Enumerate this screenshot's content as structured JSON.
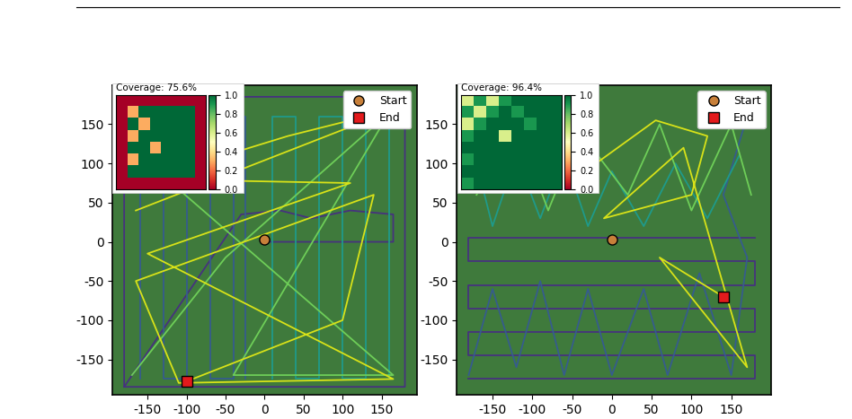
{
  "chart_data": [
    {
      "type": "path",
      "legend": "upper right",
      "coverage_label": "Coverage: 75.6%",
      "xlim": [
        -195,
        195
      ],
      "ylim": [
        -195,
        200
      ],
      "xticks": [
        -150,
        -100,
        -50,
        0,
        50,
        100,
        150
      ],
      "yticks": [
        -150,
        -100,
        -50,
        0,
        50,
        100,
        150
      ],
      "start": {
        "name": "Start",
        "x": 0,
        "y": 3,
        "color": "#c8803a",
        "marker": "circle"
      },
      "end": {
        "name": "End",
        "x": -100,
        "y": -178,
        "color": "#e31a1c",
        "marker": "square"
      },
      "paths": [
        {
          "color": "#46327e",
          "x": [
            -180,
            180,
            180,
            -180,
            -180,
            -30,
            20,
            60,
            110,
            165,
            165,
            0
          ],
          "y": [
            -185,
            -185,
            185,
            185,
            -185,
            35,
            40,
            30,
            40,
            35,
            0,
            0
          ]
        },
        {
          "color": "#365c8d",
          "x": [
            -160,
            -160,
            -130,
            -130,
            -100,
            -100,
            -70,
            -70,
            -40,
            -40,
            -25,
            -25
          ],
          "y": [
            -175,
            160,
            160,
            -175,
            -175,
            160,
            160,
            -175,
            -175,
            160,
            160,
            -175
          ]
        },
        {
          "color": "#1f9a8a",
          "x": [
            10,
            10,
            40,
            40,
            70,
            70,
            100,
            100,
            130,
            130,
            160,
            160
          ],
          "y": [
            -175,
            160,
            160,
            -175,
            -175,
            160,
            160,
            -175,
            -175,
            160,
            160,
            -175
          ]
        },
        {
          "color": "#6ece58",
          "x": [
            -170,
            -50,
            160,
            -40,
            165,
            -160
          ],
          "y": [
            -170,
            -20,
            165,
            -170,
            -170,
            110
          ]
        },
        {
          "color": "#d8e219",
          "x": [
            -165,
            170,
            30,
            -150,
            110,
            -150,
            165,
            -110,
            -165,
            140,
            100,
            -100
          ],
          "y": [
            40,
            170,
            135,
            80,
            75,
            -15,
            -175,
            -180,
            -50,
            60,
            -100,
            -178
          ]
        }
      ],
      "coverage_map": {
        "cells": [
          [
            0,
            0,
            0,
            0,
            0,
            0,
            0,
            0
          ],
          [
            0,
            0.3,
            1,
            1,
            1,
            1,
            1,
            0
          ],
          [
            0,
            1,
            0.3,
            1,
            1,
            1,
            1,
            0
          ],
          [
            0,
            0.3,
            1,
            1,
            1,
            1,
            1,
            0
          ],
          [
            0,
            1,
            1,
            0.3,
            1,
            1,
            1,
            0
          ],
          [
            0,
            0.3,
            1,
            1,
            1,
            1,
            1,
            0
          ],
          [
            0,
            1,
            1,
            1,
            1,
            1,
            1,
            0
          ],
          [
            0,
            0,
            0,
            0,
            0,
            0,
            0,
            0
          ]
        ],
        "range": [
          0.0,
          1.0
        ],
        "ticks": [
          0.0,
          0.2,
          0.4,
          0.6,
          0.8,
          1.0
        ]
      }
    },
    {
      "type": "path",
      "legend": "upper right",
      "coverage_label": "Coverage: 96.4%",
      "xlim": [
        -195,
        200
      ],
      "ylim": [
        -195,
        200
      ],
      "xticks": [
        -150,
        -100,
        -50,
        0,
        50,
        100,
        150
      ],
      "yticks": [
        -150,
        -100,
        -50,
        0,
        50,
        100,
        150
      ],
      "start": {
        "name": "Start",
        "x": 0,
        "y": 3,
        "color": "#c8803a",
        "marker": "circle"
      },
      "end": {
        "name": "End",
        "x": 140,
        "y": -70,
        "color": "#e31a1c",
        "marker": "square"
      },
      "paths": [
        {
          "color": "#46327e",
          "x": [
            -180,
            180,
            180,
            -180,
            -180,
            180,
            180,
            -180,
            -180,
            180,
            180,
            -180,
            -180,
            180
          ],
          "y": [
            -175,
            -175,
            -145,
            -145,
            -115,
            -115,
            -85,
            -85,
            -55,
            -55,
            -25,
            -25,
            5,
            5
          ]
        },
        {
          "color": "#365c8d",
          "x": [
            -180,
            -150,
            -120,
            -90,
            -60,
            -30,
            0,
            40,
            70,
            110,
            150,
            170,
            140,
            170
          ],
          "y": [
            -170,
            -60,
            -160,
            -50,
            -170,
            -60,
            -170,
            -60,
            -170,
            -40,
            -170,
            -20,
            60,
            160
          ]
        },
        {
          "color": "#1f9a8a",
          "x": [
            -175,
            -150,
            -120,
            -90,
            -60,
            -30,
            0,
            40,
            80,
            120,
            160
          ],
          "y": [
            120,
            20,
            110,
            30,
            110,
            20,
            90,
            20,
            100,
            30,
            110
          ]
        },
        {
          "color": "#6ece58",
          "x": [
            -170,
            -120,
            -80,
            -40,
            20,
            60,
            100,
            150,
            175
          ],
          "y": [
            60,
            150,
            40,
            140,
            60,
            150,
            40,
            150,
            60
          ]
        },
        {
          "color": "#d8e219",
          "x": [
            -120,
            -60,
            -20,
            55,
            120,
            100,
            -10,
            90,
            170,
            115,
            60,
            140
          ],
          "y": [
            145,
            135,
            100,
            155,
            135,
            60,
            30,
            120,
            -160,
            -90,
            -20,
            -70
          ]
        }
      ],
      "coverage_map": {
        "cells": [
          [
            0.6,
            0.9,
            0.6,
            0.9,
            1,
            1,
            1,
            1
          ],
          [
            0.9,
            0.6,
            0.9,
            1,
            0.9,
            1,
            1,
            1
          ],
          [
            0.6,
            0.9,
            1,
            1,
            1,
            0.9,
            1,
            1
          ],
          [
            0.9,
            1,
            1,
            0.6,
            1,
            1,
            1,
            1
          ],
          [
            1,
            1,
            1,
            1,
            1,
            1,
            1,
            1
          ],
          [
            0.9,
            1,
            1,
            1,
            1,
            1,
            1,
            1
          ],
          [
            1,
            1,
            1,
            1,
            1,
            1,
            1,
            1
          ],
          [
            0.9,
            1,
            1,
            1,
            1,
            1,
            1,
            1
          ]
        ],
        "range": [
          0.0,
          1.0
        ],
        "ticks": [
          0.0,
          0.2,
          0.4,
          0.6,
          0.8,
          1.0
        ]
      }
    }
  ]
}
